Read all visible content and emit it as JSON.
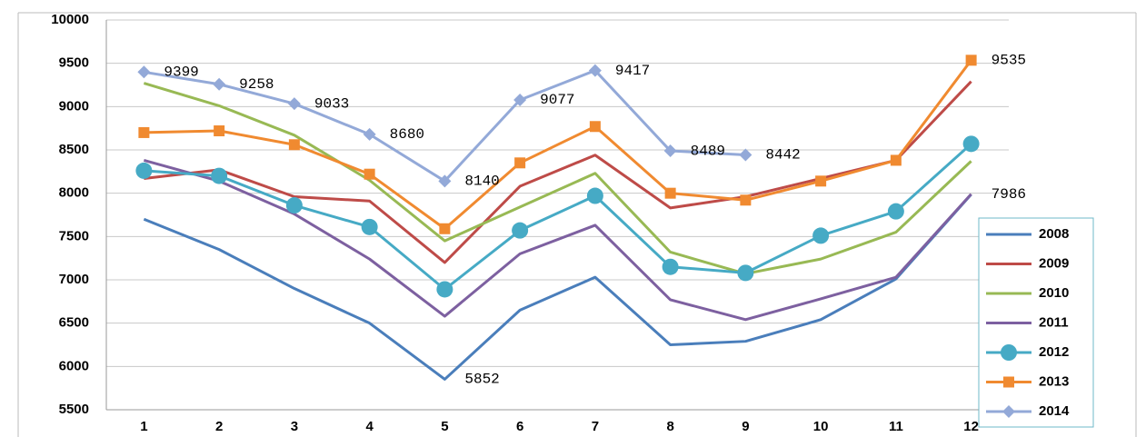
{
  "chart_data": {
    "type": "line",
    "categories": [
      "1",
      "2",
      "3",
      "4",
      "5",
      "6",
      "7",
      "8",
      "9",
      "10",
      "11",
      "12"
    ],
    "ylim": [
      5500,
      10000
    ],
    "yticks": [
      5500,
      6000,
      6500,
      7000,
      7500,
      8000,
      8500,
      9000,
      9500,
      10000
    ],
    "grid": true,
    "legend": "right",
    "series": [
      {
        "name": "2008",
        "color": "#4a7ebb",
        "marker": "none",
        "values": [
          7700,
          7350,
          6900,
          6500,
          5852,
          6650,
          7030,
          6250,
          6290,
          6540,
          7010,
          7986
        ],
        "value_labels": [
          null,
          null,
          null,
          null,
          "5852",
          null,
          null,
          null,
          null,
          null,
          null,
          "7986"
        ]
      },
      {
        "name": "2009",
        "color": "#be4b48",
        "marker": "none",
        "values": [
          8170,
          8270,
          7960,
          7910,
          7200,
          8080,
          8440,
          7830,
          7960,
          8170,
          8380,
          9290
        ]
      },
      {
        "name": "2010",
        "color": "#98b954",
        "marker": "none",
        "values": [
          9270,
          9010,
          8670,
          8150,
          7450,
          7840,
          8230,
          7320,
          7070,
          7240,
          7550,
          8370
        ]
      },
      {
        "name": "2011",
        "color": "#7d60a0",
        "marker": "none",
        "values": [
          8380,
          8140,
          7760,
          7240,
          6580,
          7300,
          7630,
          6770,
          6540,
          6780,
          7030,
          7990
        ]
      },
      {
        "name": "2012",
        "color": "#46aac5",
        "marker": "circle",
        "values": [
          8260,
          8200,
          7860,
          7610,
          6890,
          7570,
          7970,
          7150,
          7080,
          7510,
          7790,
          8570
        ]
      },
      {
        "name": "2013",
        "color": "#f08a30",
        "marker": "square",
        "values": [
          8700,
          8720,
          8560,
          8220,
          7590,
          8350,
          8770,
          8000,
          7920,
          8140,
          8380,
          9535
        ],
        "value_labels": [
          null,
          null,
          null,
          null,
          null,
          null,
          null,
          null,
          null,
          null,
          null,
          "9535"
        ]
      },
      {
        "name": "2014",
        "color": "#93a9d8",
        "marker": "diamond",
        "values": [
          9399,
          9258,
          9033,
          8680,
          8140,
          9077,
          9417,
          8489,
          8442,
          null,
          null,
          null
        ],
        "value_labels": [
          "9399",
          "9258",
          "9033",
          "8680",
          "8140",
          "9077",
          "9417",
          "8489",
          "8442",
          null,
          null,
          null
        ]
      }
    ]
  }
}
